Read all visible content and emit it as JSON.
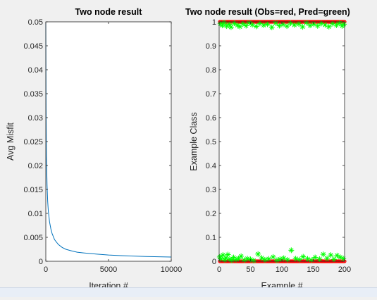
{
  "chart_data": [
    {
      "type": "line",
      "title": "Two node result",
      "xlabel": "Iteration #",
      "ylabel": "Avg Misfit",
      "xlim": [
        0,
        10000
      ],
      "ylim": [
        0,
        0.05
      ],
      "xticks": [
        0,
        5000,
        10000
      ],
      "xtick_labels": [
        "0",
        "5000",
        "10000"
      ],
      "yticks": [
        0,
        0.005,
        0.01,
        0.015,
        0.02,
        0.025,
        0.03,
        0.035,
        0.04,
        0.045,
        0.05
      ],
      "ytick_labels": [
        "0",
        "0.005",
        "0.01",
        "0.015",
        "0.02",
        "0.025",
        "0.03",
        "0.035",
        "0.04",
        "0.045",
        "0.05"
      ],
      "grid": false,
      "series": [
        {
          "color": "#0072bd",
          "x": [
            0,
            20,
            50,
            100,
            150,
            200,
            300,
            400,
            500,
            700,
            1000,
            1300,
            1600,
            2000,
            2500,
            3000,
            4000,
            5000,
            6000,
            7000,
            8000,
            9000,
            10000
          ],
          "y": [
            0.05,
            0.032,
            0.022,
            0.016,
            0.0125,
            0.0105,
            0.0082,
            0.0068,
            0.0058,
            0.0045,
            0.0035,
            0.0029,
            0.0025,
            0.0022,
            0.0019,
            0.00175,
            0.0015,
            0.0013,
            0.00118,
            0.00108,
            0.001,
            0.00093,
            0.00088
          ]
        }
      ]
    },
    {
      "type": "scatter",
      "title": "Two node result (Obs=red, Pred=green)",
      "xlabel": "Example #",
      "ylabel": "Example Class",
      "xlim": [
        0,
        200
      ],
      "ylim": [
        0,
        1
      ],
      "xticks": [
        0,
        50,
        100,
        150,
        200
      ],
      "xtick_labels": [
        "0",
        "50",
        "100",
        "150",
        "200"
      ],
      "yticks": [
        0,
        0.1,
        0.2,
        0.3,
        0.4,
        0.5,
        0.6,
        0.7,
        0.8,
        0.9,
        1
      ],
      "ytick_labels": [
        "0",
        "0.1",
        "0.2",
        "0.3",
        "0.4",
        "0.5",
        "0.6",
        "0.7",
        "0.8",
        "0.9",
        "1"
      ],
      "grid": false,
      "series": [
        {
          "color": "#ff0000",
          "marker": "o",
          "x_range": [
            1,
            200
          ],
          "values": [
            0,
            1
          ]
        },
        {
          "color": "#00ff00",
          "marker": "*",
          "low": {
            "x": [
              1,
              3,
              6,
              9,
              11,
              14,
              17,
              20,
              23,
              27,
              31,
              35,
              40,
              45,
              50,
              55,
              62,
              68,
              73,
              79,
              86,
              92,
              97,
              103,
              109,
              115,
              122,
              128,
              134,
              141,
              147,
              153,
              160,
              166,
              172,
              178,
              183,
              188,
              193,
              198
            ],
            "y": [
              0.018,
              0.01,
              0.026,
              0.006,
              0.014,
              0.028,
              0.009,
              0.004,
              0.016,
              0.007,
              0.012,
              0.021,
              0.005,
              0.011,
              0.008,
              0.003,
              0.03,
              0.014,
              0.006,
              0.01,
              0.018,
              0.004,
              0.009,
              0.013,
              0.006,
              0.046,
              0.011,
              0.007,
              0.019,
              0.01,
              0.005,
              0.016,
              0.009,
              0.029,
              0.012,
              0.026,
              0.008,
              0.024,
              0.017,
              0.011
            ]
          },
          "high": {
            "x": [
              2,
              5,
              8,
              12,
              16,
              19,
              24,
              29,
              33,
              38,
              43,
              48,
              53,
              59,
              65,
              71,
              77,
              84,
              90,
              96,
              102,
              108,
              114,
              120,
              127,
              133,
              139,
              145,
              151,
              157,
              163,
              169,
              175,
              181,
              187,
              192,
              196,
              199
            ],
            "y": [
              0.992,
              0.985,
              0.996,
              0.982,
              0.99,
              0.978,
              0.994,
              0.986,
              0.98,
              0.992,
              0.984,
              0.996,
              0.988,
              0.981,
              0.993,
              0.986,
              0.99,
              0.977,
              0.995,
              0.984,
              0.989,
              0.982,
              0.994,
              0.987,
              0.991,
              0.979,
              0.996,
              0.985,
              0.99,
              0.983,
              0.993,
              0.987,
              0.98,
              0.992,
              0.986,
              0.995,
              0.983,
              0.99
            ]
          }
        }
      ]
    }
  ]
}
